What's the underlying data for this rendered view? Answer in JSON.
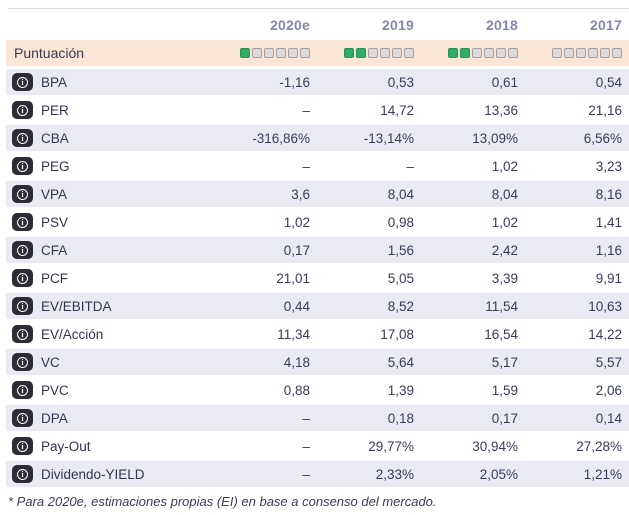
{
  "header": {
    "columns": [
      "2020e",
      "2019",
      "2018",
      "2017"
    ]
  },
  "score_row": {
    "label": "Puntuación",
    "max_squares": 6,
    "scores": [
      1,
      2,
      2,
      0
    ],
    "filled_color": "#2fad64",
    "empty_color": "#ddd9da"
  },
  "rows": [
    {
      "label": "BPA",
      "values": [
        "-1,16",
        "0,53",
        "0,61",
        "0,54"
      ]
    },
    {
      "label": "PER",
      "values": [
        "–",
        "14,72",
        "13,36",
        "21,16"
      ]
    },
    {
      "label": "CBA",
      "values": [
        "-316,86%",
        "-13,14%",
        "13,09%",
        "6,56%"
      ]
    },
    {
      "label": "PEG",
      "values": [
        "–",
        "–",
        "1,02",
        "3,23"
      ]
    },
    {
      "label": "VPA",
      "values": [
        "3,6",
        "8,04",
        "8,04",
        "8,16"
      ]
    },
    {
      "label": "PSV",
      "values": [
        "1,02",
        "0,98",
        "1,02",
        "1,41"
      ]
    },
    {
      "label": "CFA",
      "values": [
        "0,17",
        "1,56",
        "2,42",
        "1,16"
      ]
    },
    {
      "label": "PCF",
      "values": [
        "21,01",
        "5,05",
        "3,39",
        "9,91"
      ]
    },
    {
      "label": "EV/EBITDA",
      "values": [
        "0,44",
        "8,52",
        "11,54",
        "10,63"
      ]
    },
    {
      "label": "EV/Acción",
      "values": [
        "11,34",
        "17,08",
        "16,54",
        "14,22"
      ]
    },
    {
      "label": "VC",
      "values": [
        "4,18",
        "5,64",
        "5,17",
        "5,57"
      ]
    },
    {
      "label": "PVC",
      "values": [
        "0,88",
        "1,39",
        "1,59",
        "2,06"
      ]
    },
    {
      "label": "DPA",
      "values": [
        "–",
        "0,18",
        "0,17",
        "0,14"
      ]
    },
    {
      "label": "Pay-Out",
      "values": [
        "–",
        "29,77%",
        "30,94%",
        "27,28%"
      ]
    },
    {
      "label": "Dividendo-YIELD",
      "values": [
        "–",
        "2,33%",
        "2,05%",
        "1,21%"
      ]
    }
  ],
  "icons": {
    "info": "i"
  },
  "colors": {
    "score_row_bg": "#fbe5d4",
    "shaded_row_bg": "#e9eaf3",
    "header_text": "#8287ae",
    "body_text": "#383c57",
    "info_badge_bg": "#2d2c34"
  },
  "footnote": "* Para 2020e, estimaciones propias (EI) en base a consenso del mercado."
}
